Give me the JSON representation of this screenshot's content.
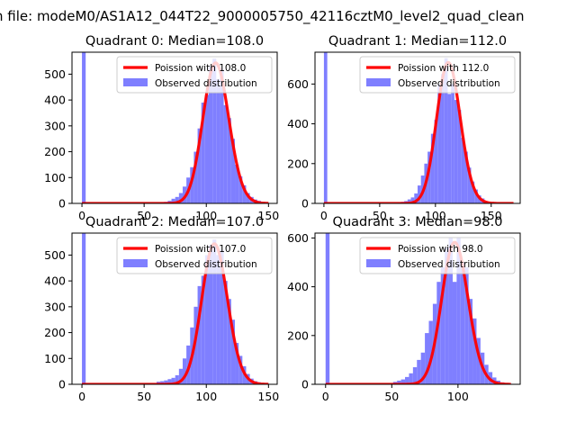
{
  "figure": {
    "suptitle": "n file: modeM0/AS1A12_044T22_9000005750_42116cztM0_level2_quad_clean"
  },
  "colors": {
    "hist": "#7f7fff",
    "poisson": "#ff0000",
    "axes": "#000000"
  },
  "chart_data": [
    {
      "type": "bar",
      "title": "Quadrant 0: Median=108.0",
      "median": 108.0,
      "xlim": [
        -8,
        157
      ],
      "ylim": [
        0,
        585
      ],
      "xticks": [
        0,
        50,
        100,
        150
      ],
      "yticks": [
        0,
        100,
        200,
        300,
        400,
        500
      ],
      "bin_width": 3,
      "legend": [
        "Poission with 108.0",
        "Observed distribution"
      ],
      "legend_position": "upper right",
      "zero_spike": 585,
      "histogram": {
        "bin_start": 60,
        "values": [
          2,
          4,
          6,
          10,
          18,
          25,
          40,
          65,
          100,
          140,
          200,
          290,
          390,
          420,
          530,
          560,
          480,
          520,
          380,
          330,
          250,
          150,
          105,
          70,
          40,
          25,
          15,
          10,
          6,
          3
        ]
      },
      "poisson_curve": {
        "mean": 108.0,
        "x_range": [
          0,
          150
        ]
      }
    },
    {
      "type": "bar",
      "title": "Quadrant 1: Median=112.0",
      "median": 112.0,
      "xlim": [
        -8,
        176
      ],
      "ylim": [
        0,
        760
      ],
      "xticks": [
        0,
        50,
        100,
        150
      ],
      "yticks": [
        0,
        200,
        400,
        600
      ],
      "bin_width": 3,
      "legend": [
        "Poission with 112.0",
        "Observed distribution"
      ],
      "legend_position": "upper right",
      "zero_spike": 760,
      "histogram": {
        "bin_start": 63,
        "values": [
          3,
          5,
          8,
          12,
          20,
          30,
          50,
          90,
          140,
          200,
          260,
          350,
          420,
          600,
          650,
          730,
          550,
          600,
          520,
          470,
          330,
          260,
          180,
          110,
          70,
          40,
          25,
          12,
          6,
          3,
          2
        ]
      },
      "poisson_curve": {
        "mean": 112.0,
        "x_range": [
          0,
          170
        ]
      }
    },
    {
      "type": "bar",
      "title": "Quadrant 2: Median=107.0",
      "median": 107.0,
      "xlim": [
        -8,
        157
      ],
      "ylim": [
        0,
        585
      ],
      "xticks": [
        0,
        50,
        100,
        150
      ],
      "yticks": [
        0,
        100,
        200,
        300,
        400,
        500
      ],
      "bin_width": 3,
      "legend": [
        "Poission with 107.0",
        "Observed distribution"
      ],
      "legend_position": "upper right",
      "zero_spike": 585,
      "histogram": {
        "bin_start": 60,
        "values": [
          10,
          12,
          15,
          20,
          25,
          35,
          60,
          100,
          150,
          220,
          300,
          380,
          420,
          500,
          540,
          560,
          500,
          520,
          400,
          330,
          250,
          160,
          110,
          70,
          40,
          22,
          12,
          8,
          5,
          3
        ]
      },
      "poisson_curve": {
        "mean": 107.0,
        "x_range": [
          0,
          150
        ]
      }
    },
    {
      "type": "bar",
      "title": "Quadrant 3: Median=98.0",
      "median": 98.0,
      "xlim": [
        -8,
        147
      ],
      "ylim": [
        0,
        620
      ],
      "xticks": [
        0,
        50,
        100
      ],
      "yticks": [
        0,
        200,
        400,
        600
      ],
      "bin_width": 3,
      "legend": [
        "Poission with 98.0",
        "Observed distribution"
      ],
      "legend_position": "upper right",
      "zero_spike": 620,
      "histogram": {
        "bin_start": 51,
        "values": [
          10,
          15,
          20,
          30,
          45,
          70,
          100,
          130,
          210,
          260,
          330,
          420,
          480,
          560,
          600,
          420,
          600,
          500,
          480,
          350,
          270,
          190,
          130,
          80,
          50,
          28,
          15,
          8,
          4,
          2
        ]
      },
      "poisson_curve": {
        "mean": 98.0,
        "x_range": [
          0,
          140
        ]
      }
    }
  ]
}
